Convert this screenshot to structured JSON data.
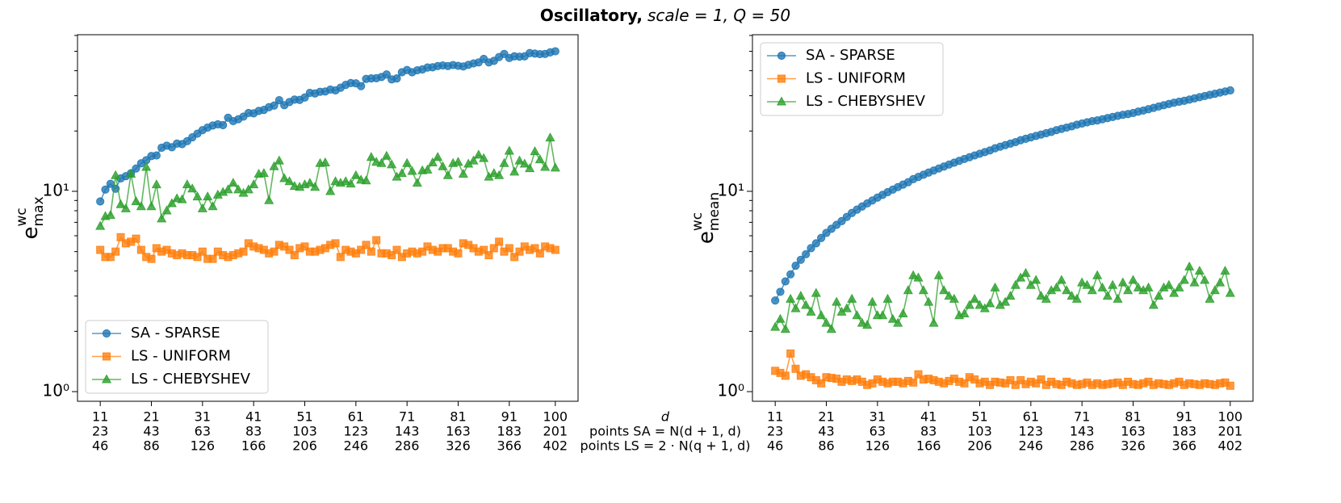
{
  "title": [
    "Oscillatory,",
    "scale = 1, Q = 50"
  ],
  "xlabel_lines": [
    "d",
    "points SA = N(d + 1, d)",
    "points LS = 2 · N(q + 1, d)"
  ],
  "chart_data": [
    {
      "type": "line",
      "log_y": true,
      "legend": "lower left",
      "ylabel": {
        "base": "e",
        "sup": "wc",
        "sub": "max"
      },
      "xlim": [
        6.55,
        104.45
      ],
      "ylim": [
        0.895,
        60.5
      ],
      "xticks": [
        {
          "value": 11,
          "label": [
            "11",
            "23",
            "46"
          ]
        },
        {
          "value": 21,
          "label": [
            "21",
            "43",
            "86"
          ]
        },
        {
          "value": 31,
          "label": [
            "31",
            "63",
            "126"
          ]
        },
        {
          "value": 41,
          "label": [
            "41",
            "83",
            "166"
          ]
        },
        {
          "value": 51,
          "label": [
            "51",
            "103",
            "206"
          ]
        },
        {
          "value": 61,
          "label": [
            "61",
            "123",
            "246"
          ]
        },
        {
          "value": 71,
          "label": [
            "71",
            "143",
            "286"
          ]
        },
        {
          "value": 81,
          "label": [
            "81",
            "163",
            "326"
          ]
        },
        {
          "value": 91,
          "label": [
            "91",
            "183",
            "366"
          ]
        },
        {
          "value": 100,
          "label": [
            "100",
            "201",
            "402"
          ]
        }
      ],
      "yticks": [
        {
          "value": 1,
          "label": "10⁰"
        },
        {
          "value": 10,
          "label": "10¹"
        }
      ],
      "yminor": [
        2,
        3,
        4,
        5,
        6,
        7,
        8,
        9,
        20,
        30,
        40,
        50,
        60
      ],
      "x": [
        11,
        12,
        13,
        14,
        15,
        16,
        17,
        18,
        19,
        20,
        21,
        22,
        23,
        24,
        25,
        26,
        27,
        28,
        29,
        30,
        31,
        32,
        33,
        34,
        35,
        36,
        37,
        38,
        39,
        40,
        41,
        42,
        43,
        44,
        45,
        46,
        47,
        48,
        49,
        50,
        51,
        52,
        53,
        54,
        55,
        56,
        57,
        58,
        59,
        60,
        61,
        62,
        63,
        64,
        65,
        66,
        67,
        68,
        69,
        70,
        71,
        72,
        73,
        74,
        75,
        76,
        77,
        78,
        79,
        80,
        81,
        82,
        83,
        84,
        85,
        86,
        87,
        88,
        89,
        90,
        91,
        92,
        93,
        94,
        95,
        96,
        97,
        98,
        99,
        100
      ],
      "series": [
        {
          "name": "SA - SPARSE",
          "color": "#1f77b4",
          "marker": "circle",
          "values": [
            8.9,
            10.2,
            10.9,
            10.3,
            11.6,
            11.9,
            12.3,
            13.0,
            13.8,
            14.3,
            15.0,
            15.1,
            16.5,
            16.9,
            16.6,
            17.3,
            17.2,
            17.8,
            18.6,
            19.4,
            20.2,
            20.8,
            21.3,
            21.6,
            21.4,
            23.3,
            22.4,
            22.9,
            23.6,
            24.6,
            24.5,
            25.2,
            25.5,
            26.3,
            26.8,
            28.5,
            26.9,
            27.9,
            28.7,
            28.6,
            29.4,
            31.0,
            30.8,
            31.4,
            31.5,
            32.2,
            31.9,
            32.9,
            34.0,
            34.7,
            34.6,
            33.5,
            36.4,
            36.6,
            36.7,
            37.2,
            38.3,
            36.2,
            36.6,
            39.3,
            40.3,
            39.3,
            40.2,
            40.6,
            41.5,
            41.6,
            42.2,
            42.5,
            42.2,
            42.7,
            42.3,
            42.0,
            42.8,
            43.5,
            44.0,
            45.8,
            44.0,
            44.8,
            46.8,
            48.5,
            46.3,
            47.2,
            47.0,
            47.2,
            49.0,
            48.7,
            48.4,
            48.5,
            49.4,
            50.0
          ]
        },
        {
          "name": "LS - UNIFORM",
          "color": "#ff7f0e",
          "marker": "square",
          "values": [
            5.1,
            4.7,
            4.7,
            5.0,
            5.9,
            5.5,
            5.6,
            5.8,
            5.1,
            4.7,
            4.6,
            5.2,
            5.0,
            5.1,
            4.9,
            4.8,
            4.9,
            4.8,
            4.8,
            4.7,
            5.0,
            4.6,
            4.6,
            5.0,
            4.8,
            4.7,
            4.8,
            4.9,
            5.0,
            5.5,
            5.3,
            5.2,
            5.1,
            4.9,
            5.0,
            5.4,
            5.3,
            5.1,
            4.8,
            5.2,
            5.3,
            5.0,
            5.0,
            5.1,
            5.2,
            5.4,
            5.5,
            4.7,
            5.1,
            5.0,
            4.9,
            5.1,
            5.4,
            5.0,
            5.7,
            4.9,
            4.9,
            4.8,
            5.1,
            4.7,
            4.9,
            5.0,
            4.9,
            5.0,
            5.3,
            5.1,
            5.0,
            5.2,
            5.2,
            5.0,
            4.9,
            5.5,
            5.4,
            5.2,
            5.0,
            5.1,
            4.8,
            5.2,
            5.6,
            5.0,
            5.2,
            4.7,
            5.0,
            5.3,
            5.1,
            5.2,
            4.9,
            5.3,
            5.2,
            5.1
          ]
        },
        {
          "name": "LS - CHEBYSHEV",
          "color": "#2ca02c",
          "marker": "triangle",
          "values": [
            6.7,
            7.5,
            7.6,
            12.0,
            8.6,
            8.2,
            12.2,
            8.9,
            8.4,
            13.2,
            8.4,
            10.8,
            7.3,
            8.0,
            8.7,
            9.2,
            9.1,
            10.8,
            10.3,
            9.4,
            8.2,
            9.4,
            8.4,
            9.6,
            9.9,
            10.2,
            11.0,
            10.2,
            9.8,
            10.2,
            10.8,
            12.2,
            12.3,
            9.0,
            13.3,
            14.2,
            11.6,
            11.2,
            10.6,
            10.5,
            10.8,
            11.0,
            10.5,
            13.8,
            13.9,
            10.0,
            11.2,
            11.0,
            11.2,
            10.9,
            12.0,
            11.4,
            11.3,
            14.8,
            14.0,
            13.8,
            15.0,
            13.6,
            11.8,
            12.3,
            13.8,
            12.6,
            11.0,
            12.7,
            12.8,
            13.9,
            14.8,
            13.3,
            12.0,
            13.8,
            14.0,
            12.2,
            13.7,
            14.2,
            15.2,
            14.6,
            11.8,
            12.3,
            12.0,
            13.8,
            15.9,
            12.5,
            14.2,
            13.7,
            13.0,
            15.8,
            14.4,
            13.2,
            18.5,
            13.1
          ]
        }
      ]
    },
    {
      "type": "line",
      "log_y": true,
      "legend": "upper left",
      "ylabel": {
        "base": "e",
        "sup": "wc",
        "sub": "mean"
      },
      "xlim": [
        6.55,
        104.45
      ],
      "ylim": [
        0.895,
        60.5
      ],
      "xticks": [
        {
          "value": 11,
          "label": [
            "11",
            "23",
            "46"
          ]
        },
        {
          "value": 21,
          "label": [
            "21",
            "43",
            "86"
          ]
        },
        {
          "value": 31,
          "label": [
            "31",
            "63",
            "126"
          ]
        },
        {
          "value": 41,
          "label": [
            "41",
            "83",
            "166"
          ]
        },
        {
          "value": 51,
          "label": [
            "51",
            "103",
            "206"
          ]
        },
        {
          "value": 61,
          "label": [
            "61",
            "123",
            "246"
          ]
        },
        {
          "value": 71,
          "label": [
            "71",
            "143",
            "286"
          ]
        },
        {
          "value": 81,
          "label": [
            "81",
            "163",
            "326"
          ]
        },
        {
          "value": 91,
          "label": [
            "91",
            "183",
            "366"
          ]
        },
        {
          "value": 100,
          "label": [
            "100",
            "201",
            "402"
          ]
        }
      ],
      "yticks": [
        {
          "value": 1,
          "label": "10⁰"
        },
        {
          "value": 10,
          "label": "10¹"
        }
      ],
      "yminor": [
        2,
        3,
        4,
        5,
        6,
        7,
        8,
        9,
        20,
        30,
        40,
        50,
        60
      ],
      "x": [
        11,
        12,
        13,
        14,
        15,
        16,
        17,
        18,
        19,
        20,
        21,
        22,
        23,
        24,
        25,
        26,
        27,
        28,
        29,
        30,
        31,
        32,
        33,
        34,
        35,
        36,
        37,
        38,
        39,
        40,
        41,
        42,
        43,
        44,
        45,
        46,
        47,
        48,
        49,
        50,
        51,
        52,
        53,
        54,
        55,
        56,
        57,
        58,
        59,
        60,
        61,
        62,
        63,
        64,
        65,
        66,
        67,
        68,
        69,
        70,
        71,
        72,
        73,
        74,
        75,
        76,
        77,
        78,
        79,
        80,
        81,
        82,
        83,
        84,
        85,
        86,
        87,
        88,
        89,
        90,
        91,
        92,
        93,
        94,
        95,
        96,
        97,
        98,
        99,
        100
      ],
      "series": [
        {
          "name": "SA - SPARSE",
          "color": "#1f77b4",
          "marker": "circle",
          "values": [
            2.85,
            3.15,
            3.55,
            3.85,
            4.25,
            4.55,
            4.85,
            5.2,
            5.5,
            5.85,
            6.2,
            6.5,
            6.8,
            7.1,
            7.45,
            7.8,
            8.1,
            8.4,
            8.7,
            9.0,
            9.3,
            9.6,
            9.9,
            10.2,
            10.5,
            10.8,
            11.1,
            11.5,
            11.8,
            12.1,
            12.4,
            12.7,
            13.0,
            13.3,
            13.6,
            13.9,
            14.2,
            14.5,
            14.8,
            15.1,
            15.4,
            15.7,
            16.0,
            16.4,
            16.7,
            17.0,
            17.3,
            17.6,
            18.0,
            18.3,
            18.6,
            18.9,
            19.2,
            19.5,
            19.8,
            20.2,
            20.5,
            20.8,
            21.1,
            21.5,
            21.8,
            22.1,
            22.4,
            22.6,
            22.9,
            23.2,
            23.5,
            23.8,
            24.1,
            24.3,
            24.6,
            25.0,
            25.3,
            25.7,
            26.1,
            26.5,
            26.9,
            27.3,
            27.7,
            28.0,
            28.3,
            28.7,
            29.1,
            29.5,
            29.9,
            30.3,
            30.7,
            31.1,
            31.5,
            31.9
          ]
        },
        {
          "name": "LS - UNIFORM",
          "color": "#ff7f0e",
          "marker": "square",
          "values": [
            1.27,
            1.24,
            1.2,
            1.55,
            1.3,
            1.2,
            1.22,
            1.18,
            1.14,
            1.1,
            1.18,
            1.17,
            1.16,
            1.12,
            1.15,
            1.13,
            1.15,
            1.12,
            1.08,
            1.1,
            1.15,
            1.12,
            1.1,
            1.12,
            1.12,
            1.1,
            1.13,
            1.11,
            1.22,
            1.15,
            1.16,
            1.14,
            1.12,
            1.1,
            1.13,
            1.16,
            1.12,
            1.1,
            1.18,
            1.15,
            1.1,
            1.12,
            1.08,
            1.12,
            1.11,
            1.1,
            1.14,
            1.08,
            1.14,
            1.09,
            1.12,
            1.1,
            1.15,
            1.08,
            1.12,
            1.09,
            1.08,
            1.12,
            1.1,
            1.08,
            1.09,
            1.11,
            1.08,
            1.1,
            1.08,
            1.09,
            1.1,
            1.11,
            1.08,
            1.12,
            1.09,
            1.08,
            1.1,
            1.12,
            1.08,
            1.1,
            1.09,
            1.08,
            1.1,
            1.12,
            1.08,
            1.1,
            1.09,
            1.08,
            1.1,
            1.09,
            1.08,
            1.1,
            1.11,
            1.07
          ]
        },
        {
          "name": "LS - CHEBYSHEV",
          "color": "#2ca02c",
          "marker": "triangle",
          "values": [
            2.1,
            2.3,
            2.05,
            2.9,
            2.6,
            3.0,
            2.7,
            2.5,
            3.1,
            2.4,
            2.2,
            2.05,
            2.8,
            2.5,
            2.6,
            2.9,
            2.4,
            2.2,
            2.15,
            2.8,
            2.4,
            2.4,
            2.9,
            2.3,
            2.2,
            2.45,
            3.2,
            3.8,
            3.7,
            3.2,
            2.8,
            2.2,
            3.8,
            3.2,
            3.0,
            2.9,
            2.4,
            2.45,
            2.7,
            2.9,
            2.7,
            2.6,
            2.75,
            3.3,
            2.7,
            2.8,
            3.0,
            3.4,
            3.7,
            3.9,
            3.4,
            3.6,
            3.0,
            2.9,
            3.2,
            3.3,
            3.6,
            3.2,
            3.0,
            2.9,
            3.5,
            3.4,
            3.2,
            3.8,
            3.3,
            3.0,
            3.4,
            2.9,
            3.5,
            3.2,
            3.6,
            3.3,
            3.2,
            3.3,
            2.7,
            3.0,
            3.3,
            3.4,
            3.1,
            3.3,
            3.6,
            4.2,
            3.5,
            4.0,
            3.6,
            2.9,
            3.2,
            3.5,
            4.0,
            3.1
          ]
        }
      ]
    }
  ]
}
